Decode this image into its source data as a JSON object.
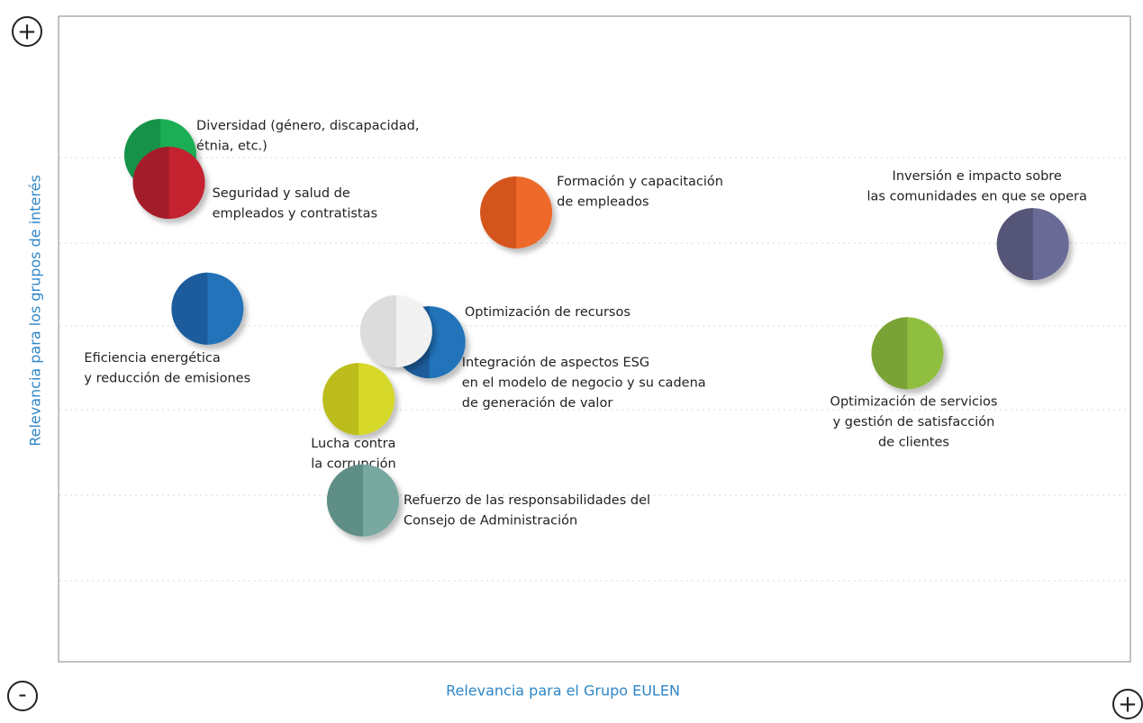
{
  "chart_data": {
    "type": "scatter",
    "xlabel": "Relevancia para el Grupo EULEN",
    "ylabel": "Relevancia para los grupos de interés",
    "y_max_label": "+",
    "origin_label": "-",
    "x_max_label": "+",
    "xlim": [
      0,
      100
    ],
    "ylim": [
      0,
      100
    ],
    "points": [
      {
        "label": [
          "Diversidad (género, discapacidad,",
          "étnia, etc.)"
        ],
        "x": 9.5,
        "y": 78.5,
        "colors": [
          "#14934a",
          "#1fae54"
        ]
      },
      {
        "label": [
          "Seguridad y salud de",
          "empleados y contratistas"
        ],
        "x": 10.3,
        "y": 74.2,
        "colors": [
          "#a31b2b",
          "#c4202f"
        ]
      },
      {
        "label": [
          "Formación y capacitación",
          "de empleados"
        ],
        "x": 42.7,
        "y": 69.6,
        "colors": [
          "#d4551f",
          "#ee6a2a"
        ]
      },
      {
        "label": [
          "Inversión e impacto sobre",
          "las comunidades en que se opera"
        ],
        "x": 90.9,
        "y": 64.7,
        "colors": [
          "#555577",
          "#6b6b96"
        ]
      },
      {
        "label": [
          "Eficiencia energética",
          "y reducción de emisiones"
        ],
        "x": 13.9,
        "y": 54.7,
        "colors": [
          "#1a5c9c",
          "#2473ba"
        ]
      },
      {
        "label": [
          "Integración de aspectos ESG",
          "en el modelo de negocio y su cadena",
          "de generación de valor"
        ],
        "x": 34.6,
        "y": 49.5,
        "colors": [
          "#1a5c9c",
          "#2473ba"
        ]
      },
      {
        "label": [
          "Optimización de recursos"
        ],
        "x": 31.5,
        "y": 51.2,
        "colors": [
          "#dcdcdc",
          "#f1f1f1"
        ]
      },
      {
        "label": [
          "Lucha contra",
          "la corrupción"
        ],
        "x": 28.0,
        "y": 40.7,
        "colors": [
          "#bcbd1c",
          "#d6d92a"
        ]
      },
      {
        "label": [
          "Optimización de servicios",
          "y gestión de satisfacción",
          "de clientes"
        ],
        "x": 79.2,
        "y": 47.8,
        "colors": [
          "#7aa334",
          "#90bf40"
        ]
      },
      {
        "label": [
          "Refuerzo de las responsabilidades del",
          "Consejo de Administración"
        ],
        "x": 28.4,
        "y": 25.0,
        "colors": [
          "#5e8e87",
          "#78a8a0"
        ]
      }
    ]
  }
}
